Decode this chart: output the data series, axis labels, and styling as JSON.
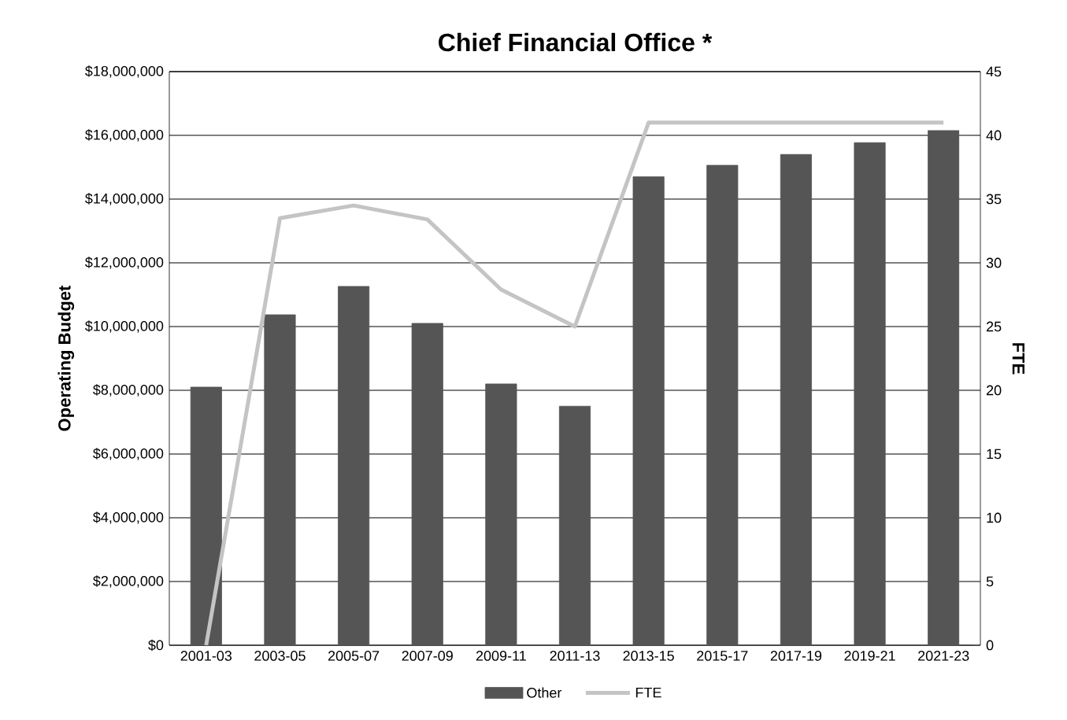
{
  "chart_data": {
    "type": "bar",
    "title": "Chief Financial Office *",
    "ylabel": "Operating Budget",
    "y2label": "FTE",
    "categories": [
      "2001-03",
      "2003-05",
      "2005-07",
      "2007-09",
      "2009-11",
      "2011-13",
      "2013-15",
      "2015-17",
      "2017-19",
      "2019-21",
      "2021-23"
    ],
    "series": [
      {
        "name": "Other",
        "color": "#555555",
        "values": [
          8100000,
          10370000,
          11260000,
          10100000,
          8200000,
          7500000,
          14700000,
          15060000,
          15400000,
          15770000,
          16150000
        ]
      },
      {
        "name": "FTE",
        "type": "line",
        "axis": "y2",
        "color": "#c4c4c4",
        "values": [
          0,
          33.5,
          34.5,
          33.4,
          27.9,
          25,
          41,
          41,
          41,
          41,
          41
        ]
      }
    ],
    "ylim": [
      0,
      18000000
    ],
    "yticks": [
      {
        "value": 0,
        "label": "$0"
      },
      {
        "value": 2000000,
        "label": "$2,000,000"
      },
      {
        "value": 4000000,
        "label": "$4,000,000"
      },
      {
        "value": 6000000,
        "label": "$6,000,000"
      },
      {
        "value": 8000000,
        "label": "$8,000,000"
      },
      {
        "value": 10000000,
        "label": "$10,000,000"
      },
      {
        "value": 12000000,
        "label": "$12,000,000"
      },
      {
        "value": 14000000,
        "label": "$14,000,000"
      },
      {
        "value": 16000000,
        "label": "$16,000,000"
      },
      {
        "value": 18000000,
        "label": "$18,000,000"
      }
    ],
    "y2lim": [
      0,
      45
    ],
    "y2ticks": [
      0,
      5,
      10,
      15,
      20,
      25,
      30,
      35,
      40,
      45
    ],
    "grid": "y",
    "legend": "bottom"
  }
}
